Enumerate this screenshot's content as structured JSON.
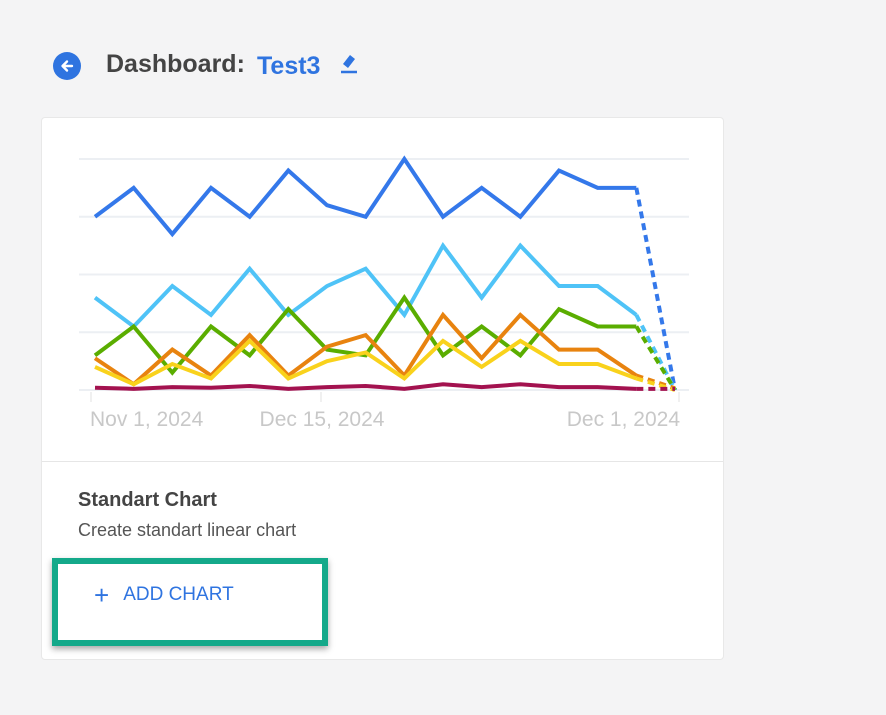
{
  "header": {
    "title": "Dashboard:",
    "dashboard_name": "Test3",
    "back_icon": "arrow-left-icon",
    "edit_icon": "pencil-icon"
  },
  "card": {
    "title": "Standart Chart",
    "description": "Create standart linear chart",
    "add_button": {
      "label": "ADD CHART",
      "icon": "plus-icon"
    },
    "highlight_color": "#14a98a"
  },
  "chart_data": {
    "type": "line",
    "x_tick_labels": [
      "Nov 1, 2024",
      "Dec 15, 2024",
      "Dec 1, 2024"
    ],
    "grid": true,
    "ylim": [
      0,
      4
    ],
    "last_segment_style": "dashed",
    "series": [
      {
        "color": "#3478ea",
        "values": [
          3.0,
          3.5,
          2.7,
          3.5,
          3.0,
          3.8,
          3.2,
          3.0,
          4.0,
          3.0,
          3.5,
          3.0,
          3.8,
          3.5,
          3.5,
          0
        ]
      },
      {
        "color": "#4fc3f7",
        "values": [
          1.6,
          1.1,
          1.8,
          1.3,
          2.1,
          1.3,
          1.8,
          2.1,
          1.3,
          2.5,
          1.6,
          2.5,
          1.8,
          1.8,
          1.3,
          0
        ]
      },
      {
        "color": "#5aad00",
        "values": [
          0.6,
          1.1,
          0.3,
          1.1,
          0.6,
          1.4,
          0.7,
          0.6,
          1.6,
          0.6,
          1.1,
          0.6,
          1.4,
          1.1,
          1.1,
          0
        ]
      },
      {
        "color": "#e8830f",
        "values": [
          0.55,
          0.1,
          0.7,
          0.25,
          0.95,
          0.25,
          0.75,
          0.95,
          0.25,
          1.3,
          0.55,
          1.3,
          0.7,
          0.7,
          0.25,
          0.03
        ]
      },
      {
        "color": "#f9d21c",
        "values": [
          0.4,
          0.1,
          0.45,
          0.2,
          0.85,
          0.2,
          0.5,
          0.65,
          0.2,
          0.85,
          0.4,
          0.85,
          0.45,
          0.45,
          0.2,
          0
        ]
      },
      {
        "color": "#a3124f",
        "values": [
          0.04,
          0.02,
          0.05,
          0.04,
          0.07,
          0.02,
          0.05,
          0.07,
          0.02,
          0.1,
          0.05,
          0.1,
          0.05,
          0.05,
          0.02,
          0.02
        ]
      }
    ]
  }
}
